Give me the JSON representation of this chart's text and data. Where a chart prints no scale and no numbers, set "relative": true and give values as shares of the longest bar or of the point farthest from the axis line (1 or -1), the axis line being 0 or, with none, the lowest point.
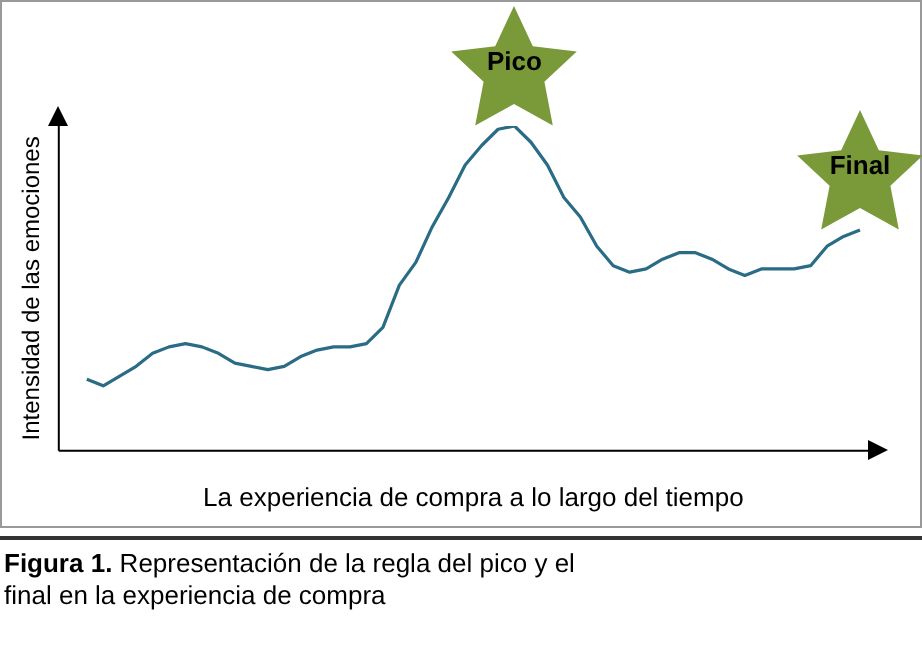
{
  "chart_data": {
    "type": "line",
    "relative": true,
    "xlabel": "La experiencia de compra a lo largo del tiempo",
    "ylabel": "Intensidad de las emociones",
    "categories": [
      null,
      null,
      null,
      null,
      null,
      null,
      null,
      null,
      null,
      null,
      null,
      null,
      null,
      null,
      null,
      null,
      null,
      null,
      null,
      null,
      null,
      null,
      null,
      null,
      null,
      null,
      null,
      null,
      null,
      null,
      null,
      null,
      null,
      null,
      null,
      null,
      null,
      null,
      null,
      null,
      null,
      null,
      null,
      null,
      null,
      null,
      null,
      null
    ],
    "series": [
      {
        "color": "#2a6b85",
        "values": [
          0.22,
          0.2,
          0.23,
          0.26,
          0.3,
          0.32,
          0.33,
          0.32,
          0.3,
          0.27,
          0.26,
          0.25,
          0.26,
          0.29,
          0.31,
          0.32,
          0.32,
          0.33,
          0.38,
          0.51,
          0.58,
          0.69,
          0.78,
          0.88,
          0.94,
          0.99,
          1,
          0.95,
          0.88,
          0.78,
          0.72,
          0.63,
          0.57,
          0.55,
          0.56,
          0.59,
          0.61,
          0.61,
          0.59,
          0.56,
          0.54,
          0.56,
          0.56,
          0.56,
          0.57,
          0.63,
          0.66,
          0.68
        ]
      }
    ],
    "marker": "none",
    "grid": false,
    "legend": false,
    "annotations": [
      {
        "text": "Pico",
        "y": 1
      },
      {
        "text": "Final",
        "y": 0.68
      },
      "Figura 1. Representación de la regla del pico y el final en la experiencia de compra"
    ]
  }
}
